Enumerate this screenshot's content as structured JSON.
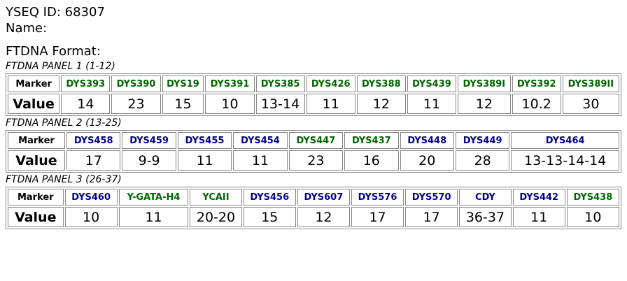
{
  "header": {
    "id_line": "YSEQ ID: 68307",
    "name_line": "Name:",
    "format_line": "FTDNA Format:"
  },
  "panels": [
    {
      "title": "FTDNA PANEL 1 (1-12)",
      "row_labels": [
        "Marker",
        "Value"
      ],
      "markers": [
        {
          "name": "DYS393",
          "color": "#006400",
          "value": 14
        },
        {
          "name": "DYS390",
          "color": "#006400",
          "value": 23
        },
        {
          "name": "DYS19",
          "color": "#006400",
          "value": 15
        },
        {
          "name": "DYS391",
          "color": "#006400",
          "value": 10
        },
        {
          "name": "DYS385",
          "color": "#006400",
          "value": "13-14"
        },
        {
          "name": "DYS426",
          "color": "#006400",
          "value": 11
        },
        {
          "name": "DYS388",
          "color": "#006400",
          "value": 12
        },
        {
          "name": "DYS439",
          "color": "#006400",
          "value": 11
        },
        {
          "name": "DYS389I",
          "color": "#006400",
          "value": 12
        },
        {
          "name": "DYS392",
          "color": "#006400",
          "value": 10.2
        },
        {
          "name": "DYS389II",
          "color": "#006400",
          "value": 30
        }
      ]
    },
    {
      "title": "FTDNA PANEL 2 (13-25)",
      "row_labels": [
        "Marker",
        "Value"
      ],
      "markers": [
        {
          "name": "DYS458",
          "color": "#00008b",
          "value": 17
        },
        {
          "name": "DYS459",
          "color": "#00008b",
          "value": "9-9"
        },
        {
          "name": "DYS455",
          "color": "#00008b",
          "value": 11
        },
        {
          "name": "DYS454",
          "color": "#00008b",
          "value": 11
        },
        {
          "name": "DYS447",
          "color": "#006400",
          "value": 23
        },
        {
          "name": "DYS437",
          "color": "#006400",
          "value": 16
        },
        {
          "name": "DYS448",
          "color": "#00008b",
          "value": 20
        },
        {
          "name": "DYS449",
          "color": "#00008b",
          "value": 28
        },
        {
          "name": "DYS464",
          "color": "#00008b",
          "value": "13-13-14-14"
        }
      ]
    },
    {
      "title": "FTDNA PANEL 3 (26-37)",
      "row_labels": [
        "Marker",
        "Value"
      ],
      "markers": [
        {
          "name": "DYS460",
          "color": "#00008b",
          "value": 10
        },
        {
          "name": "Y-GATA-H4",
          "color": "#006400",
          "value": 11
        },
        {
          "name": "YCAII",
          "color": "#006400",
          "value": "20-20"
        },
        {
          "name": "DYS456",
          "color": "#00008b",
          "value": 15
        },
        {
          "name": "DYS607",
          "color": "#00008b",
          "value": 12
        },
        {
          "name": "DYS576",
          "color": "#00008b",
          "value": 17
        },
        {
          "name": "DYS570",
          "color": "#00008b",
          "value": 17
        },
        {
          "name": "CDY",
          "color": "#00008b",
          "value": "36-37"
        },
        {
          "name": "DYS442",
          "color": "#00008b",
          "value": 11
        },
        {
          "name": "DYS438",
          "color": "#006400",
          "value": 10
        }
      ]
    }
  ]
}
